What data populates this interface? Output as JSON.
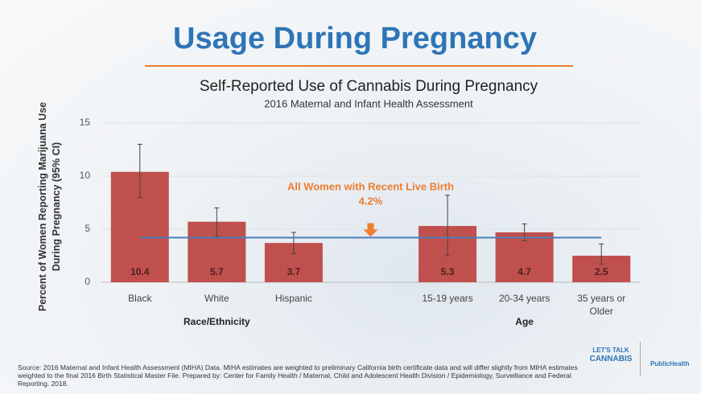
{
  "slide_title": "Usage During Pregnancy",
  "chart_data": {
    "type": "bar",
    "title": "Self-Reported Use of Cannabis During Pregnancy",
    "subtitle": "2016 Maternal and Infant Health Assessment",
    "y_label": "Percent of Women Reporting Marijuana Use During Pregnancy (95% CI)",
    "categories": [
      "Black",
      "White",
      "Hispanic",
      null,
      "15-19 years",
      "20-34 years",
      "35 years or Older"
    ],
    "values": [
      10.4,
      5.7,
      3.7,
      null,
      5.3,
      4.7,
      2.5
    ],
    "ci_low": [
      8.0,
      4.3,
      2.7,
      null,
      2.5,
      3.9,
      1.7
    ],
    "ci_high": [
      13.0,
      7.0,
      4.7,
      null,
      8.2,
      5.5,
      3.6
    ],
    "color": "#c0504d",
    "groups": [
      {
        "label": "Race/Ethnicity",
        "from": 0,
        "to": 2
      },
      {
        "label": "Age",
        "from": 4,
        "to": 6
      }
    ],
    "reference": {
      "label": "All Women with Recent Live Birth",
      "value": 4.2,
      "value_label": "4.2%",
      "color": "#4a7ebb"
    },
    "ylim": [
      0,
      15
    ],
    "yticks": [
      0,
      5,
      10,
      15
    ],
    "grid": true
  },
  "source": "Source: 2016 Maternal and Infant Health Assessment (MIHA) Data. MIHA estimates are weighted to preliminary California birth certificate data and will differ slightly from MIHA estimates weighted to the final 2016 Birth Statistical Master File. Prepared by: Center for Family Health / Maternal, Child and Adolescent Health Division / Epidemiology, Surveillance and Federal Reporting. 2018.",
  "logos": [
    "LET'S TALK",
    "CANNABIS",
    "PublicHealth"
  ]
}
